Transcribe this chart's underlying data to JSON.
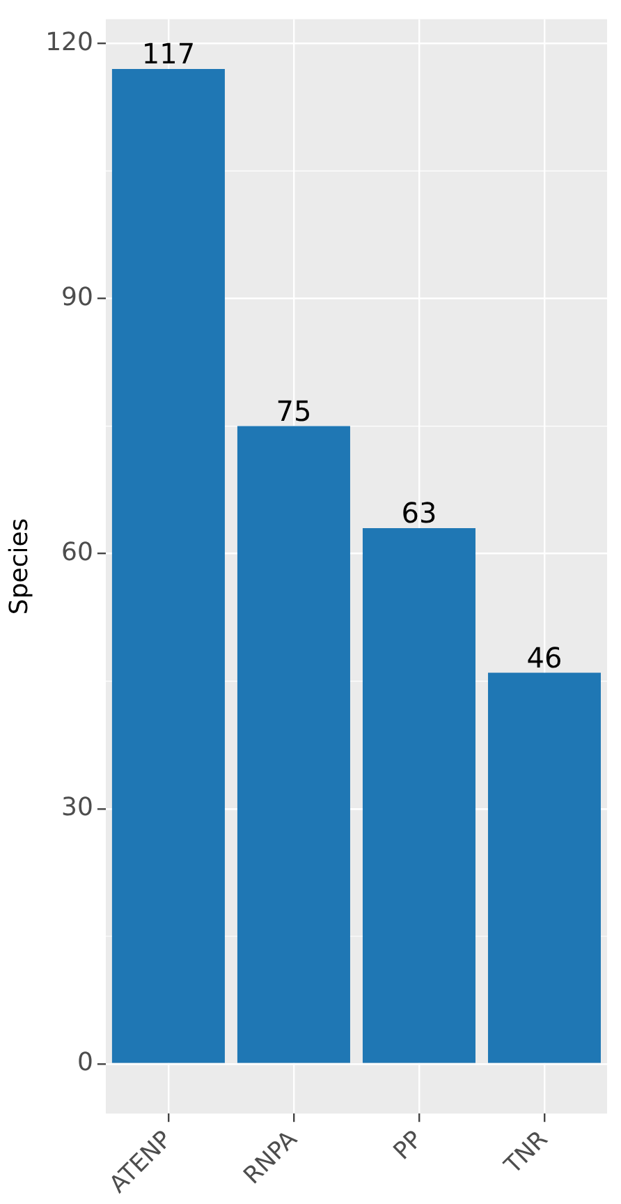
{
  "chart_data": {
    "type": "bar",
    "ylabel": "Species",
    "categories": [
      "ATENP",
      "RNPA",
      "PP",
      "TNR"
    ],
    "values": [
      117,
      75,
      63,
      46
    ],
    "color": "#1f77b4",
    "ylim": [
      -5.85,
      122.85
    ],
    "yticks": [
      0,
      30,
      60,
      90,
      120
    ],
    "grid": true,
    "data_labels": true,
    "legend": false
  }
}
